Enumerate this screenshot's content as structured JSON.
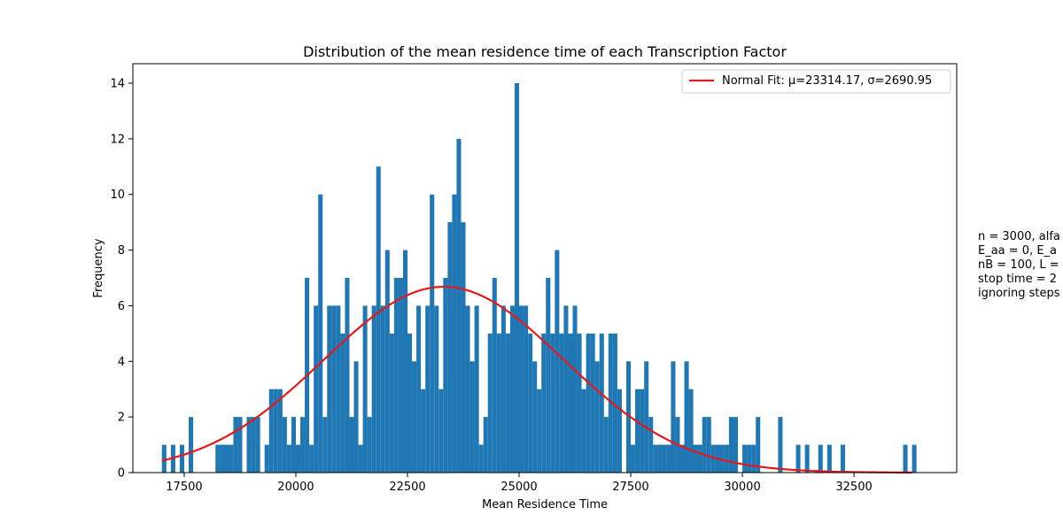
{
  "chart_data": {
    "type": "bar",
    "title": "Distribution of the mean residence time of each Transcription Factor",
    "xlabel": "Mean Residence Time",
    "ylabel": "Frequency",
    "xlim": [
      16350,
      34800
    ],
    "ylim": [
      0,
      14.7
    ],
    "xticks": [
      17500,
      20000,
      22500,
      25000,
      27500,
      30000,
      32500
    ],
    "yticks": [
      0,
      2,
      4,
      6,
      8,
      10,
      12,
      14
    ],
    "bar_color": "#1f77b4",
    "fit_color": "#e31a1c",
    "legend_position": "top-right",
    "histogram": {
      "bin_start": 17000,
      "bin_width": 100,
      "counts": [
        1,
        0,
        1,
        0,
        1,
        0,
        2,
        0,
        0,
        0,
        0,
        0,
        0,
        1,
        1,
        1,
        0,
        2,
        0,
        2,
        2,
        2,
        0,
        1,
        3,
        3,
        3,
        2,
        1,
        2,
        1,
        2,
        7,
        1,
        6,
        10,
        2,
        6,
        6,
        6,
        5,
        7,
        2,
        4,
        1,
        6,
        2,
        6,
        11,
        6,
        8,
        5,
        7,
        7,
        8,
        5,
        4,
        6,
        3,
        6,
        10,
        6,
        3,
        7,
        9,
        10,
        12,
        9,
        6,
        4,
        6,
        1,
        2,
        5,
        7,
        5,
        6,
        5,
        6,
        14,
        6,
        6,
        5,
        4,
        3,
        5,
        7,
        5,
        8,
        5,
        6,
        5,
        6,
        5,
        3,
        5,
        5,
        4,
        5,
        2,
        5,
        5,
        3,
        0,
        4,
        1,
        3,
        3,
        4,
        2,
        1,
        1,
        1,
        1,
        4,
        1,
        1,
        4,
        3,
        1,
        1,
        2,
        2,
        1,
        1,
        0,
        0,
        0,
        1,
        0,
        0,
        1,
        1,
        2,
        0,
        0,
        0,
        0,
        0,
        0,
        0,
        0,
        0,
        0,
        0,
        0,
        0,
        0,
        0,
        0,
        0,
        0,
        0,
        0,
        0,
        0,
        0,
        0,
        0,
        0,
        0,
        0,
        0,
        0,
        0,
        0,
        0,
        0,
        0,
        0,
        0,
        0,
        0,
        0,
        0
      ]
    },
    "extra_bars": [
      {
        "x": 18200,
        "count": 1
      },
      {
        "x": 18300,
        "count": 1
      },
      {
        "x": 18400,
        "count": 1
      },
      {
        "x": 18600,
        "count": 2
      },
      {
        "x": 28100,
        "count": 1
      },
      {
        "x": 28300,
        "count": 1
      },
      {
        "x": 28500,
        "count": 2
      },
      {
        "x": 28600,
        "count": 1
      },
      {
        "x": 28700,
        "count": 1
      },
      {
        "x": 28800,
        "count": 1
      },
      {
        "x": 28900,
        "count": 1
      },
      {
        "x": 29000,
        "count": 1
      },
      {
        "x": 29400,
        "count": 1
      },
      {
        "x": 29500,
        "count": 1
      },
      {
        "x": 29600,
        "count": 1
      },
      {
        "x": 29700,
        "count": 2
      },
      {
        "x": 29800,
        "count": 2
      },
      {
        "x": 30000,
        "count": 1
      },
      {
        "x": 30800,
        "count": 2
      },
      {
        "x": 31200,
        "count": 1
      },
      {
        "x": 31400,
        "count": 1
      },
      {
        "x": 31700,
        "count": 1
      },
      {
        "x": 31900,
        "count": 1
      },
      {
        "x": 32200,
        "count": 1
      },
      {
        "x": 33600,
        "count": 1
      },
      {
        "x": 33800,
        "count": 1
      }
    ],
    "fit": {
      "label": "Normal Fit: μ=23314.17, σ=2690.95",
      "mu": 23314.17,
      "sigma": 2690.95,
      "peak": 6.68,
      "x_range": [
        17000,
        33800
      ]
    }
  },
  "side_note_lines": [
    "n = 3000, alfa",
    "E_aa = 0, E_a",
    "nB = 100, L =",
    "stop time = 2",
    "ignoring steps"
  ]
}
